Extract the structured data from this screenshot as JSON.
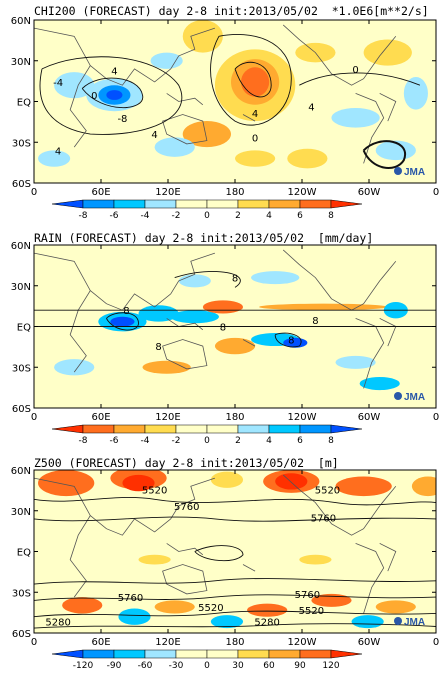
{
  "chart_data": [
    {
      "type": "heatmap",
      "title": "CHI200 (FORECAST) day 2-8 init:2013/05/02",
      "units": "*1.0E6[m**2/s]",
      "lat_ticks": [
        "60N",
        "30N",
        "EQ",
        "30S",
        "60S"
      ],
      "lon_ticks": [
        "0",
        "60E",
        "120E",
        "180",
        "120W",
        "60W",
        "0"
      ],
      "colorbar": {
        "levels": [
          -8,
          -6,
          -4,
          -2,
          0,
          2,
          4,
          6,
          8
        ],
        "colors": [
          "#0050ff",
          "#0096ff",
          "#00c8ff",
          "#a0e6ff",
          "#ffffc8",
          "#ffdc50",
          "#ffaa30",
          "#ff6e1e",
          "#ff3000"
        ]
      },
      "contour_labels": [
        "4",
        "-4",
        "0",
        "-8",
        "4",
        "0",
        "4",
        "4",
        "0",
        "4"
      ],
      "logo": "JMA"
    },
    {
      "type": "heatmap",
      "title": "RAIN (FORECAST) day 2-8 init:2013/05/02",
      "units": "[mm/day]",
      "lat_ticks": [
        "60N",
        "30N",
        "EQ",
        "30S",
        "60S"
      ],
      "lon_ticks": [
        "0",
        "60E",
        "120E",
        "180",
        "120W",
        "60W",
        "0"
      ],
      "colorbar": {
        "levels": [
          -8,
          -6,
          -4,
          -2,
          0,
          2,
          4,
          6,
          8
        ],
        "colors": [
          "#ff3000",
          "#ff6e1e",
          "#ffaa30",
          "#ffdc50",
          "#ffffc8",
          "#a0e6ff",
          "#00c8ff",
          "#0096ff",
          "#0050ff"
        ]
      },
      "contour_labels": [
        "8",
        "8",
        "8",
        "8",
        "8",
        "8"
      ],
      "logo": "JMA"
    },
    {
      "type": "heatmap",
      "title": "Z500 (FORECAST) day 2-8 init:2013/05/02",
      "units": "[m]",
      "lat_ticks": [
        "60N",
        "30N",
        "EQ",
        "30S",
        "60S"
      ],
      "lon_ticks": [
        "0",
        "60E",
        "120E",
        "180",
        "120W",
        "60W",
        "0"
      ],
      "colorbar": {
        "levels": [
          -120,
          -90,
          -60,
          -30,
          0,
          30,
          60,
          90,
          120
        ],
        "colors": [
          "#0050ff",
          "#0096ff",
          "#00c8ff",
          "#a0e6ff",
          "#ffffc8",
          "#ffdc50",
          "#ffaa30",
          "#ff6e1e",
          "#ff3000"
        ]
      },
      "contour_labels": [
        "5520",
        "5760",
        "5520",
        "5760",
        "5760",
        "5520",
        "5760",
        "5520",
        "5280",
        "5280"
      ],
      "logo": "JMA"
    }
  ]
}
